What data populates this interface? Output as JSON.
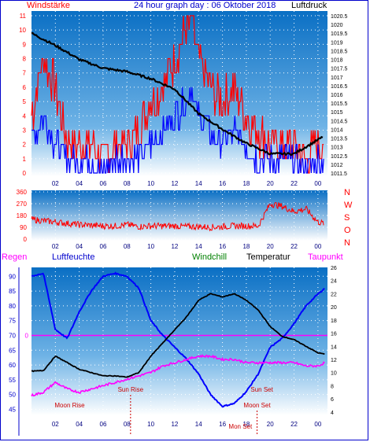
{
  "header": {
    "left_label": "Windstärke",
    "title": "24 hour graph day : 06 Oktober 2018",
    "right_label": "Luftdruck"
  },
  "middle": {
    "direction_labels": [
      "N",
      "W",
      "S",
      "O",
      "N"
    ]
  },
  "lower_header": {
    "regen": "Regen",
    "luftfeuchte": "Luftfeuchte",
    "windchill": "Windchill",
    "temperatur": "Temperatur",
    "taupunkt": "Taupunkt"
  },
  "colors": {
    "panel_top": "#0a6fc4",
    "panel_bottom": "#ffffff",
    "gust": "#ff0000",
    "wind": "#0000ff",
    "pressure": "#000000",
    "direction": "#ff0000",
    "humidity": "#0000ff",
    "temperature": "#000000",
    "dewpoint": "#ff00ff",
    "rain_line": "#ff00ff",
    "astro": "#cc0000"
  },
  "chart_data": [
    {
      "type": "line",
      "name": "wind-and-pressure",
      "x_tick_labels": [
        "02",
        "04",
        "06",
        "08",
        "10",
        "12",
        "14",
        "16",
        "18",
        "20",
        "22",
        "00"
      ],
      "x_hours": [
        1,
        3,
        5,
        7,
        9,
        11,
        13,
        15,
        17,
        19,
        21,
        23
      ],
      "xlim": [
        -1,
        23.8
      ],
      "left_axis": {
        "ticks": [
          "0",
          "1",
          "2",
          "3",
          "4",
          "5",
          "6",
          "7",
          "8",
          "9",
          "10",
          "11"
        ],
        "ylim": [
          0,
          11
        ]
      },
      "right_axis": {
        "ticks": [
          "1011.5",
          "1012",
          "1012.5",
          "1013",
          "1013.5",
          "1014",
          "1014.5",
          "1015",
          "1015.5",
          "1016",
          "1016.5",
          "1017",
          "1017.5",
          "1018",
          "1018.5",
          "1019",
          "1019.5",
          "1020",
          "1020.5"
        ],
        "ylim": [
          1011.5,
          1020.5
        ]
      },
      "series": [
        {
          "role": "pressure",
          "hours": [
            -1,
            1,
            3,
            5,
            7,
            9,
            11,
            13,
            15,
            17,
            19,
            21,
            23.5
          ],
          "values": [
            1019.5,
            1018.8,
            1018.0,
            1017.5,
            1017.3,
            1016.9,
            1016.3,
            1014.9,
            1014.0,
            1013.2,
            1012.6,
            1012.6,
            1013.6
          ]
        },
        {
          "role": "gust",
          "hours": [
            -1,
            0,
            1,
            2,
            3,
            4,
            5,
            6,
            7,
            8,
            9,
            10,
            11,
            12,
            12.4,
            13,
            14,
            15,
            16,
            17,
            18,
            19,
            20,
            21,
            22,
            23
          ],
          "values": [
            4,
            8,
            6,
            2,
            2,
            2,
            1,
            2,
            2,
            3,
            5,
            6,
            8,
            10,
            11,
            8,
            6,
            5,
            6,
            4,
            3,
            2,
            2,
            2,
            1,
            2
          ]
        },
        {
          "role": "wind",
          "hours": [
            -1,
            0,
            1,
            2,
            3,
            4,
            5,
            6,
            7,
            8,
            9,
            10,
            11,
            12,
            12.4,
            13,
            14,
            15,
            16,
            17,
            18,
            19,
            20,
            21,
            22,
            23
          ],
          "values": [
            2,
            4,
            2,
            1,
            1,
            1,
            0,
            1,
            1,
            1,
            2,
            3,
            4,
            5,
            6,
            4,
            3,
            2,
            3,
            2,
            1,
            1,
            1,
            1,
            0,
            1
          ]
        }
      ]
    },
    {
      "type": "line",
      "name": "wind-direction",
      "x_tick_labels": [
        "02",
        "04",
        "06",
        "08",
        "10",
        "12",
        "14",
        "16",
        "18",
        "20",
        "22",
        "00"
      ],
      "x_hours": [
        1,
        3,
        5,
        7,
        9,
        11,
        13,
        15,
        17,
        19,
        21,
        23
      ],
      "xlim": [
        -1,
        23.8
      ],
      "y_axis": {
        "ticks": [
          "360",
          "270",
          "180",
          "90",
          "0"
        ],
        "ylim": [
          0,
          360
        ]
      },
      "series": [
        {
          "role": "direction",
          "hours": [
            -1,
            0,
            1,
            2,
            3,
            4,
            5,
            6,
            7,
            8,
            9,
            10,
            11,
            12,
            13,
            14,
            15,
            16,
            17,
            18,
            19,
            20,
            21,
            22,
            23,
            23.5
          ],
          "values": [
            150,
            140,
            130,
            120,
            110,
            105,
            100,
            100,
            110,
            95,
            100,
            100,
            100,
            95,
            95,
            90,
            95,
            100,
            100,
            100,
            270,
            250,
            210,
            230,
            130,
            120
          ]
        }
      ]
    },
    {
      "type": "line",
      "name": "humidity-temperature-dewpoint",
      "x_tick_labels": [
        "02",
        "04",
        "06",
        "08",
        "10",
        "12",
        "14",
        "16",
        "18",
        "20",
        "22",
        "00"
      ],
      "x_hours": [
        1,
        3,
        5,
        7,
        9,
        11,
        13,
        15,
        17,
        19,
        21,
        23
      ],
      "xlim": [
        -1,
        23.8
      ],
      "left_axis": {
        "ticks": [
          "45",
          "50",
          "55",
          "60",
          "65",
          "70",
          "75",
          "80",
          "85",
          "90"
        ],
        "ylim": [
          43,
          93
        ]
      },
      "right_axis": {
        "ticks": [
          "4",
          "6",
          "8",
          "10",
          "12",
          "14",
          "16",
          "18",
          "20",
          "22",
          "24",
          "26"
        ],
        "ylim": [
          3.5,
          26
        ]
      },
      "rain_label": "0",
      "series": [
        {
          "role": "humidity",
          "hours": [
            -1,
            0,
            1,
            2,
            3,
            4,
            5,
            6,
            7,
            8,
            9,
            10,
            11,
            12,
            13,
            14,
            15,
            16,
            17,
            18,
            19,
            20,
            21,
            22,
            23,
            23.6
          ],
          "values": [
            90,
            91,
            72,
            69,
            78,
            85,
            90,
            91,
            90,
            86,
            75,
            70,
            66,
            62,
            57,
            50,
            46,
            47,
            51,
            57,
            66,
            69,
            74,
            80,
            84,
            86
          ]
        },
        {
          "role": "temperature",
          "hours": [
            -1,
            0,
            1,
            2,
            3,
            4,
            5,
            6,
            7,
            8,
            9,
            10,
            11,
            12,
            13,
            14,
            15,
            16,
            17,
            18,
            19,
            20,
            21,
            22,
            23,
            23.6
          ],
          "values": [
            10.2,
            10.3,
            12.5,
            11.5,
            10.5,
            10.0,
            9.5,
            9.5,
            9.3,
            10.0,
            12.5,
            14.5,
            16.5,
            18.5,
            21,
            22,
            21.5,
            22,
            21,
            19.5,
            17,
            15.5,
            15,
            14,
            13.0,
            12.8
          ]
        },
        {
          "role": "dewpoint",
          "hours": [
            -1,
            0,
            1,
            2,
            3,
            4,
            5,
            6,
            7,
            8,
            9,
            10,
            11,
            12,
            13,
            14,
            15,
            16,
            17,
            18,
            19,
            20,
            21,
            22,
            23,
            23.6
          ],
          "values": [
            6.5,
            7.0,
            8.5,
            7.5,
            7.0,
            7.5,
            8.0,
            8.5,
            9.0,
            9.5,
            10.0,
            11.0,
            11.5,
            12.0,
            12.5,
            12.5,
            12.0,
            12.0,
            11.5,
            11.5,
            11.5,
            11.5,
            11.5,
            11.0,
            11.0,
            11.5
          ]
        }
      ],
      "annotations": [
        {
          "text": "Moon Rise",
          "hour": 2.2
        },
        {
          "text": "Sun Rise",
          "hour": 7.3
        },
        {
          "text": "Sun Set",
          "hour": 18.3
        },
        {
          "text": "Moon Set",
          "hour": 17.9
        },
        {
          "text": "Mon Set",
          "hour": 16.5
        }
      ]
    }
  ]
}
